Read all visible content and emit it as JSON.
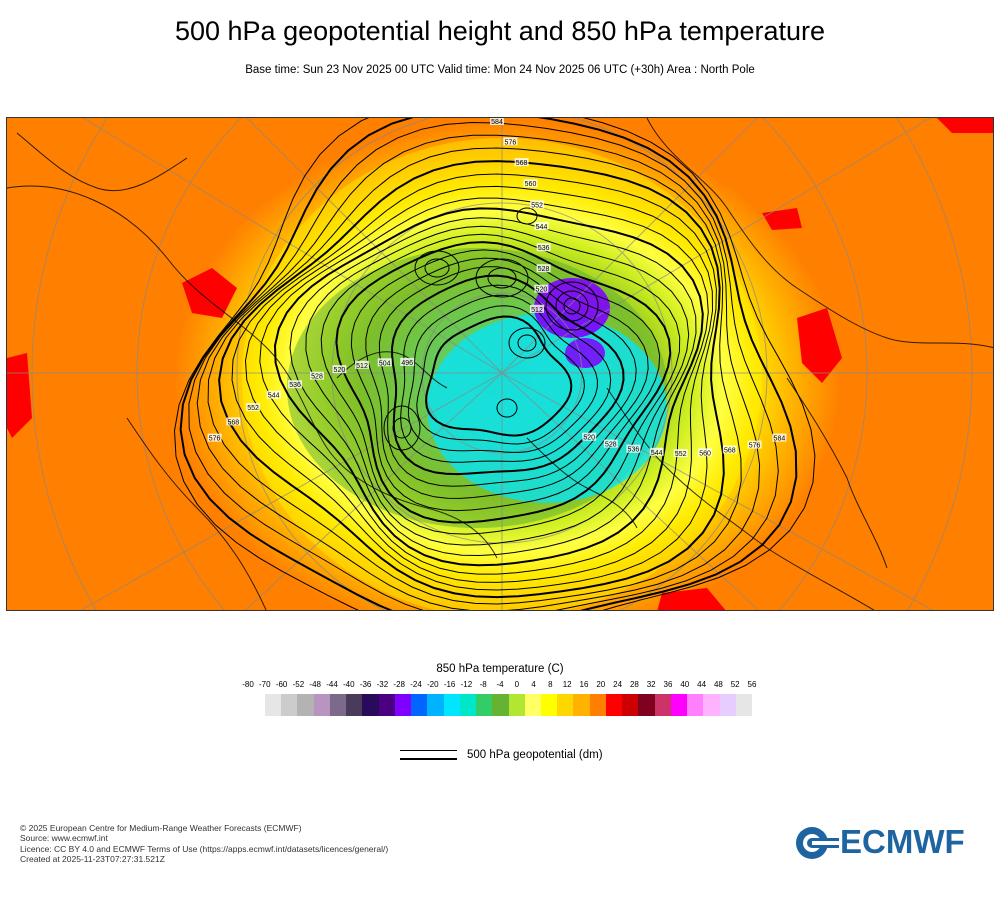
{
  "header": {
    "title": "500 hPa geopotential height and 850 hPa temperature",
    "subtitle": "Base time: Sun 23 Nov 2025 00 UTC Valid time: Mon 24 Nov 2025 06 UTC (+30h) Area : North Pole"
  },
  "map": {
    "area": "North Pole",
    "contour_labels": [
      "576",
      "568",
      "552",
      "544",
      "536",
      "528",
      "520",
      "512",
      "504",
      "496",
      "584",
      "576",
      "568",
      "560",
      "552",
      "544",
      "536",
      "528",
      "520",
      "512",
      "584",
      "576",
      "568",
      "560",
      "552",
      "544",
      "536",
      "528",
      "520"
    ],
    "colors": {
      "warm_background": "#ff7f00",
      "hot_patch": "#ff0000",
      "contour": "#000000"
    }
  },
  "colorbar": {
    "title": "850 hPa temperature (C)",
    "ticks": [
      "-80",
      "-70",
      "-60",
      "-52",
      "-48",
      "-44",
      "-40",
      "-36",
      "-32",
      "-28",
      "-24",
      "-20",
      "-16",
      "-12",
      "-8",
      "-4",
      "0",
      "4",
      "8",
      "12",
      "16",
      "20",
      "24",
      "28",
      "32",
      "36",
      "40",
      "44",
      "48",
      "52",
      "56"
    ],
    "colors": [
      "#e6e6e6",
      "#cccccc",
      "#b3b3b3",
      "#b894c0",
      "#7d6a8a",
      "#4a3b5a",
      "#2a0a5a",
      "#4b0082",
      "#8000ff",
      "#0066ff",
      "#00b3ff",
      "#00e6ff",
      "#00e6c8",
      "#33cc66",
      "#66b333",
      "#b3e633",
      "#ffff66",
      "#ffff00",
      "#ffd700",
      "#ffb300",
      "#ff8000",
      "#ff0000",
      "#cc0000",
      "#800020",
      "#cc3366",
      "#ff00ff",
      "#ff80ff",
      "#ffb3ff",
      "#e6ccff",
      "#e6e6e6"
    ]
  },
  "legend": {
    "label": "500 hPa geopotential (dm)"
  },
  "footer": {
    "line1": "© 2025 European Centre for Medium-Range Weather Forecasts (ECMWF)",
    "line2": "Source: www.ecmwf.int",
    "line3": "Licence: CC BY 4.0 and ECMWF Terms of Use (https://apps.ecmwf.int/datasets/licences/general/)",
    "line4": "Created at 2025-11-23T07:27:31.521Z"
  },
  "logo": {
    "text": "ECMWF",
    "color": "#1e64a0"
  }
}
